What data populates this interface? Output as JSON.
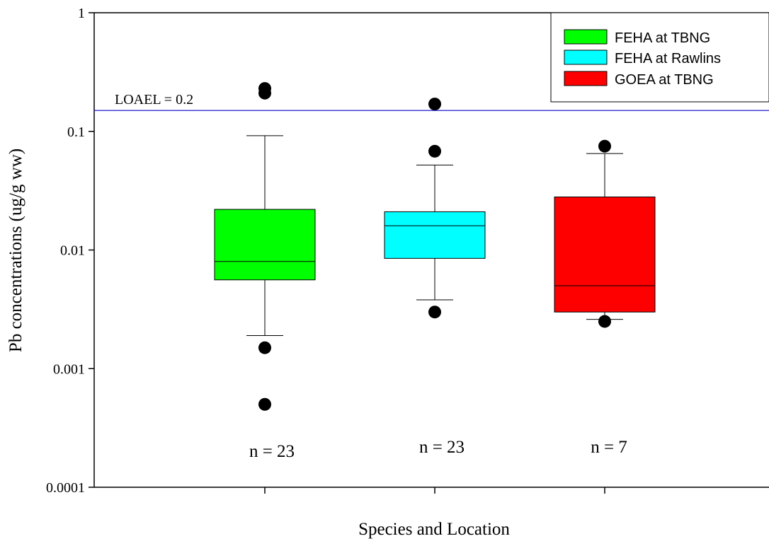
{
  "chart_data": {
    "type": "box",
    "xlabel": "Species and Location",
    "ylabel": "Pb concentrations (ug/g ww)",
    "yscale": "log",
    "ylim": [
      0.0001,
      1
    ],
    "yticks": [
      {
        "value": 1,
        "label": "1"
      },
      {
        "value": 0.1,
        "label": "0.1"
      },
      {
        "value": 0.01,
        "label": "0.01"
      },
      {
        "value": 0.001,
        "label": "0.001"
      },
      {
        "value": 0.0001,
        "label": "0.0001"
      }
    ],
    "reference_line": {
      "value": 0.15,
      "label": "LOAEL = 0.2",
      "color": "#0000cc"
    },
    "legend": {
      "position": "top-right",
      "entries": [
        {
          "label": "FEHA at TBNG",
          "color": "#00ff00"
        },
        {
          "label": "FEHA at Rawlins",
          "color": "#00ffff"
        },
        {
          "label": "GOEA at TBNG",
          "color": "#ff0000"
        }
      ]
    },
    "series": [
      {
        "name": "FEHA at TBNG",
        "color": "#00ff00",
        "whisker_low": 0.0019,
        "q1": 0.0056,
        "median": 0.008,
        "q3": 0.022,
        "whisker_high": 0.092,
        "outliers": [
          0.0015,
          0.0005,
          0.21,
          0.23
        ],
        "n_label": "n = 23"
      },
      {
        "name": "FEHA at Rawlins",
        "color": "#00ffff",
        "whisker_low": 0.0038,
        "q1": 0.0085,
        "median": 0.016,
        "q3": 0.021,
        "whisker_high": 0.052,
        "outliers": [
          0.003,
          0.068,
          0.17
        ],
        "n_label": "n = 23"
      },
      {
        "name": "GOEA at TBNG",
        "color": "#ff0000",
        "whisker_low": 0.0026,
        "q1": 0.003,
        "median": 0.005,
        "q3": 0.028,
        "whisker_high": 0.065,
        "outliers": [
          0.0025,
          0.075
        ],
        "n_label": "n = 7"
      }
    ]
  }
}
